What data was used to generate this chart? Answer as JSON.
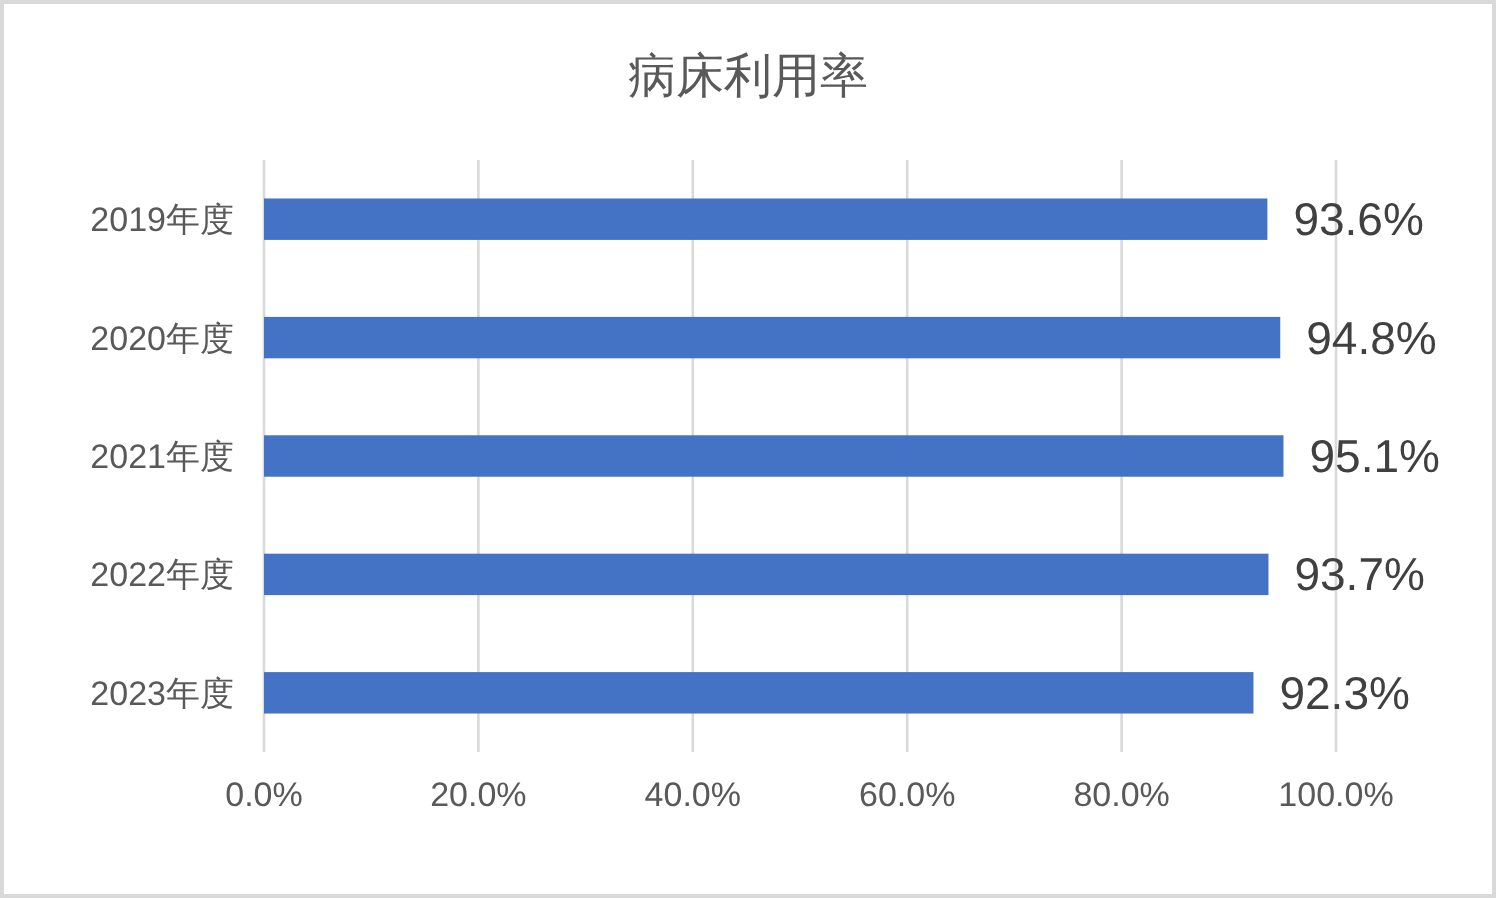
{
  "chart_data": {
    "type": "bar",
    "orientation": "horizontal",
    "title": "病床利用率",
    "categories": [
      "2019年度",
      "2020年度",
      "2021年度",
      "2022年度",
      "2023年度"
    ],
    "values": [
      93.6,
      94.8,
      95.1,
      93.7,
      92.3
    ],
    "value_labels": [
      "93.6%",
      "94.8%",
      "95.1%",
      "93.7%",
      "92.3%"
    ],
    "color": "#4472c4",
    "xlim": [
      0,
      100
    ],
    "xticks": [
      {
        "value": 0,
        "label": "0.0%"
      },
      {
        "value": 20,
        "label": "20.0%"
      },
      {
        "value": 40,
        "label": "40.0%"
      },
      {
        "value": 60,
        "label": "60.0%"
      },
      {
        "value": 80,
        "label": "80.0%"
      },
      {
        "value": 100,
        "label": "100.0%"
      }
    ],
    "grid": "x"
  }
}
